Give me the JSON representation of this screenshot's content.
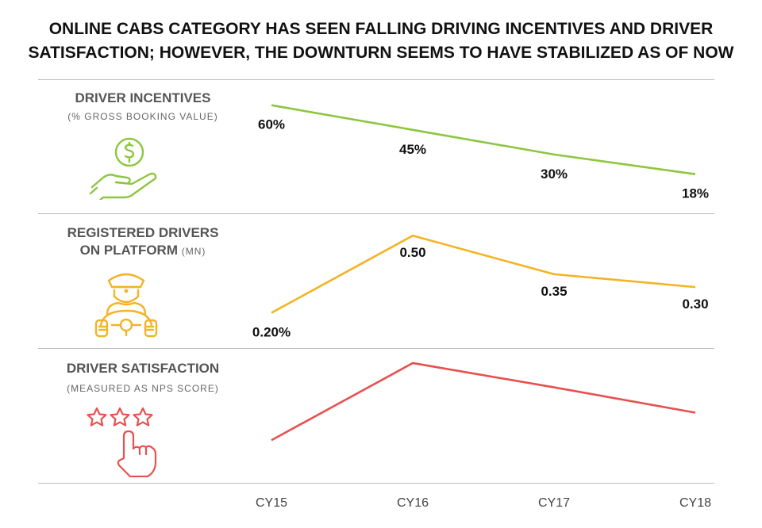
{
  "title_line1": "ONLINE CABS CATEGORY HAS SEEN FALLING DRIVING INCENTIVES AND DRIVER",
  "title_line2": "SATISFACTION; HOWEVER, THE DOWNTURN SEEMS TO HAVE STABILIZED AS OF NOW",
  "panels": [
    {
      "label": "DRIVER INCENTIVES",
      "sublabel": "(% GROSS BOOKING VALUE)",
      "icon": "money-hand-icon"
    },
    {
      "label_line1": "REGISTERED DRIVERS",
      "label_line2": "ON PLATFORM",
      "sublabel": "(MN)",
      "icon": "driver-icon"
    },
    {
      "label": "DRIVER SATISFACTION",
      "sublabel": "(MEASURED AS NPS SCORE)",
      "icon": "star-rating-hand-icon"
    }
  ],
  "colors": {
    "incentives": "#8dc63f",
    "drivers": "#f5b324",
    "satisfaction": "#e8504f",
    "text": "#111111",
    "label": "#555555"
  },
  "chart_data": {
    "type": "line",
    "categories": [
      "CY15",
      "CY16",
      "CY17",
      "CY18"
    ],
    "series": [
      {
        "name": "DRIVER INCENTIVES",
        "values": [
          60,
          45,
          30,
          18
        ],
        "labels": [
          "60%",
          "45%",
          "30%",
          "18%"
        ],
        "ylim": [
          0,
          70
        ]
      },
      {
        "name": "REGISTERED DRIVERS ON PLATFORM",
        "values": [
          0.2,
          0.5,
          0.35,
          0.3
        ],
        "labels": [
          "0.20%",
          "0.50",
          "0.35",
          "0.30"
        ],
        "ylim": [
          0.1,
          0.55
        ]
      },
      {
        "name": "DRIVER SATISFACTION",
        "values": [
          0.3,
          1.0,
          0.78,
          0.55
        ],
        "labels": [],
        "ylim": [
          0,
          1.05
        ]
      }
    ]
  }
}
